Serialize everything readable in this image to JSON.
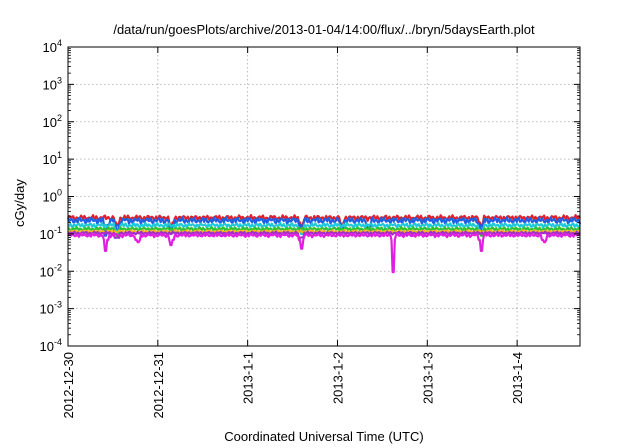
{
  "chart_data": {
    "type": "line",
    "title": "/data/run/goesPlots/archive/2013-01-04/14:00/flux/../bryn/5daysEarth.plot",
    "xlabel": "Coordinated Universal Time (UTC)",
    "ylabel": "cGy/day",
    "yscale": "log",
    "ylim": [
      0.0001,
      10000
    ],
    "yticks": [
      {
        "value": 0.0001,
        "base": "10",
        "exp": "-4"
      },
      {
        "value": 0.001,
        "base": "10",
        "exp": "-3"
      },
      {
        "value": 0.01,
        "base": "10",
        "exp": "-2"
      },
      {
        "value": 0.1,
        "base": "10",
        "exp": "-1"
      },
      {
        "value": 1,
        "base": "10",
        "exp": "0"
      },
      {
        "value": 10,
        "base": "10",
        "exp": "1"
      },
      {
        "value": 100,
        "base": "10",
        "exp": "2"
      },
      {
        "value": 1000,
        "base": "10",
        "exp": "3"
      },
      {
        "value": 10000,
        "base": "10",
        "exp": "4"
      }
    ],
    "xlim": [
      0,
      5.7
    ],
    "x_unit": "days since 2012-12-30",
    "xticks": [
      {
        "value": 0,
        "label": "2012-12-30"
      },
      {
        "value": 1,
        "label": "2012-12-31"
      },
      {
        "value": 2,
        "label": "2013-1-1"
      },
      {
        "value": 3,
        "label": "2013-1-2"
      },
      {
        "value": 4,
        "label": "2013-1-3"
      },
      {
        "value": 5,
        "label": "2013-1-4"
      }
    ],
    "grid": true,
    "legend": "none",
    "series": [
      {
        "color": "#e0202a",
        "base": 0.27,
        "amp": 0.18,
        "dips": [
          {
            "x": 0.55,
            "v": 0.17
          },
          {
            "x": 1.15,
            "v": 0.16
          },
          {
            "x": 2.6,
            "v": 0.16
          },
          {
            "x": 3.05,
            "v": 0.17
          },
          {
            "x": 4.6,
            "v": 0.16
          }
        ]
      },
      {
        "color": "#2060e0",
        "base": 0.23,
        "amp": 0.22,
        "dips": [
          {
            "x": 0.42,
            "v": 0.09
          },
          {
            "x": 0.55,
            "v": 0.1
          },
          {
            "x": 1.15,
            "v": 0.1
          },
          {
            "x": 2.6,
            "v": 0.1
          },
          {
            "x": 3.05,
            "v": 0.11
          },
          {
            "x": 3.35,
            "v": 0.1
          },
          {
            "x": 4.6,
            "v": 0.1
          }
        ]
      },
      {
        "color": "#20c8d8",
        "base": 0.17,
        "amp": 0.16,
        "dips": [
          {
            "x": 0.55,
            "v": 0.1
          },
          {
            "x": 2.6,
            "v": 0.1
          },
          {
            "x": 4.6,
            "v": 0.1
          }
        ]
      },
      {
        "color": "#30c030",
        "base": 0.135,
        "amp": 0.12,
        "dips": [
          {
            "x": 0.55,
            "v": 0.09
          },
          {
            "x": 4.6,
            "v": 0.09
          }
        ]
      },
      {
        "color": "#f0b020",
        "base": 0.115,
        "amp": 0.1,
        "dips": []
      },
      {
        "color": "#a030c8",
        "base": 0.105,
        "amp": 0.1,
        "dips": [
          {
            "x": 0.55,
            "v": 0.08
          },
          {
            "x": 2.6,
            "v": 0.08
          }
        ]
      },
      {
        "color": "#e020e0",
        "base": 0.092,
        "amp": 0.12,
        "dips": [
          {
            "x": 0.42,
            "v": 0.035
          },
          {
            "x": 0.78,
            "v": 0.06
          },
          {
            "x": 1.15,
            "v": 0.05
          },
          {
            "x": 2.6,
            "v": 0.04
          },
          {
            "x": 3.62,
            "v": 0.0095
          },
          {
            "x": 4.6,
            "v": 0.035
          },
          {
            "x": 5.3,
            "v": 0.06
          }
        ]
      }
    ]
  }
}
